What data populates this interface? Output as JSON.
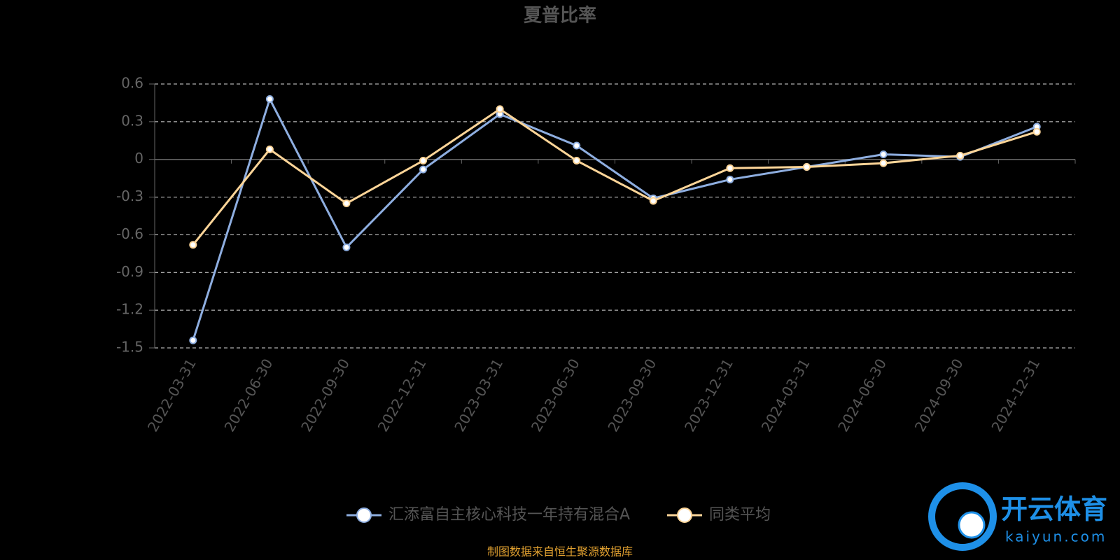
{
  "chart_data": {
    "type": "line",
    "title": "夏普比率",
    "categories": [
      "2022-03-31",
      "2022-06-30",
      "2022-09-30",
      "2022-12-31",
      "2023-03-31",
      "2023-06-30",
      "2023-09-30",
      "2023-12-31",
      "2024-03-31",
      "2024-06-30",
      "2024-09-30",
      "2024-12-31"
    ],
    "series": [
      {
        "name": "汇添富自主核心科技一年持有混合A",
        "color": "#8eaee0",
        "values": [
          -1.44,
          0.48,
          -0.7,
          -0.08,
          0.36,
          0.11,
          -0.31,
          -0.16,
          -0.06,
          0.04,
          0.02,
          0.26
        ]
      },
      {
        "name": "同类平均",
        "color": "#fdd598",
        "values": [
          -0.68,
          0.08,
          -0.35,
          -0.01,
          0.4,
          -0.01,
          -0.33,
          -0.07,
          -0.06,
          -0.03,
          0.03,
          0.22
        ]
      }
    ],
    "ylim": [
      -1.5,
      0.6
    ],
    "yticks": [
      -1.5,
      -1.2,
      -0.9,
      -0.6,
      -0.3,
      0,
      0.3,
      0.6
    ],
    "grid": true,
    "legend": "bottom",
    "source": "制图数据来自恒生聚源数据库",
    "watermark": {
      "brand": "开云体育",
      "site": "kaiyun.com"
    }
  }
}
